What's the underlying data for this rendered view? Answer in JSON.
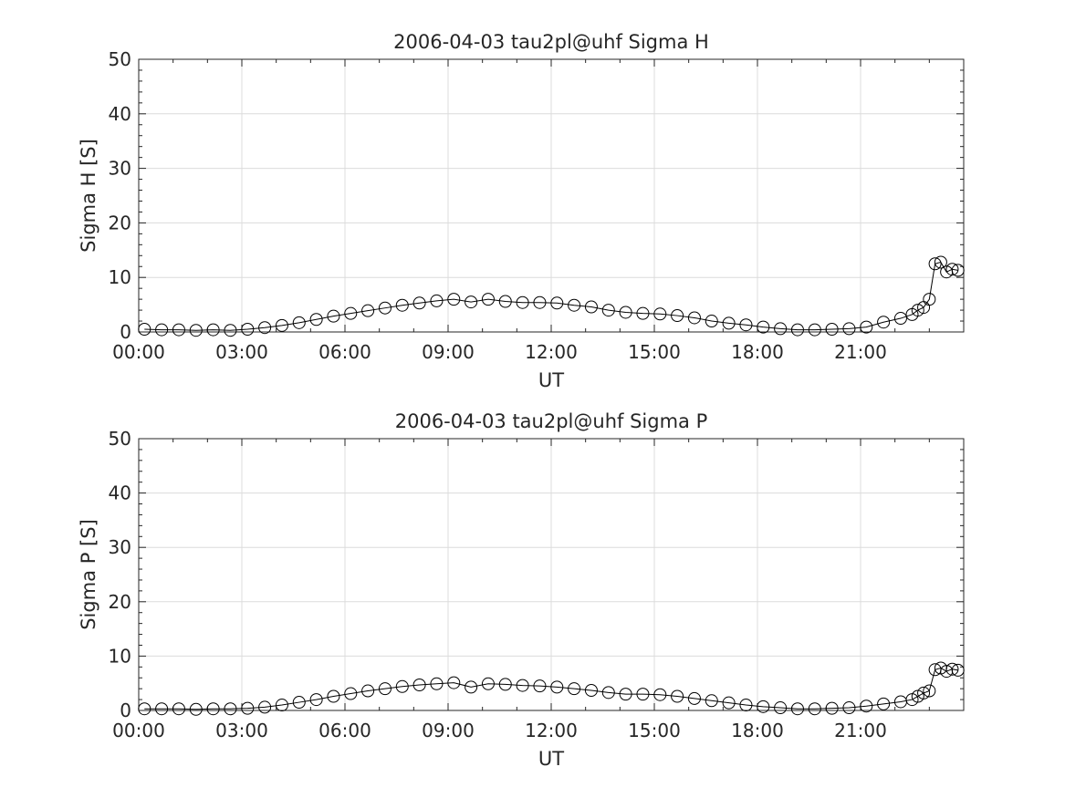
{
  "chart_data": [
    {
      "type": "line",
      "title": "2006-04-03  tau2pl@uhf Sigma H",
      "xlabel": "UT",
      "ylabel": "Sigma H [S]",
      "xlim": [
        "00:00",
        "24:00"
      ],
      "ylim": [
        0,
        50
      ],
      "xticks": [
        "00:00",
        "03:00",
        "06:00",
        "09:00",
        "12:00",
        "15:00",
        "18:00",
        "21:00"
      ],
      "yticks": [
        0,
        10,
        20,
        30,
        40,
        50
      ],
      "grid": true,
      "marker": "open-circle",
      "color": "#000000",
      "series": [
        {
          "x": [
            "00:10",
            "00:40",
            "01:10",
            "01:40",
            "02:10",
            "02:40",
            "03:10",
            "03:40",
            "04:10",
            "04:40",
            "05:10",
            "05:40",
            "06:10",
            "06:40",
            "07:10",
            "07:40",
            "08:10",
            "08:40",
            "09:10",
            "09:40",
            "10:10",
            "10:40",
            "11:10",
            "11:40",
            "12:10",
            "12:40",
            "13:10",
            "13:40",
            "14:10",
            "14:40",
            "15:10",
            "15:40",
            "16:10",
            "16:40",
            "17:10",
            "17:40",
            "18:10",
            "18:40",
            "19:10",
            "19:40",
            "20:10",
            "20:40",
            "21:10",
            "21:40",
            "22:10",
            "22:30",
            "22:40",
            "22:50",
            "23:00",
            "23:10",
            "23:20",
            "23:30",
            "23:40",
            "23:50"
          ],
          "y": [
            0.5,
            0.4,
            0.4,
            0.3,
            0.4,
            0.3,
            0.5,
            0.8,
            1.2,
            1.7,
            2.3,
            2.9,
            3.4,
            3.9,
            4.4,
            4.9,
            5.3,
            5.7,
            6.0,
            5.5,
            6.0,
            5.6,
            5.4,
            5.4,
            5.3,
            4.9,
            4.6,
            4.0,
            3.6,
            3.4,
            3.3,
            3.0,
            2.6,
            2.0,
            1.6,
            1.3,
            0.9,
            0.6,
            0.4,
            0.4,
            0.5,
            0.6,
            0.9,
            1.8,
            2.5,
            3.2,
            4.0,
            4.5,
            6.0,
            12.5,
            12.8,
            11.0,
            11.5,
            11.3
          ]
        }
      ]
    },
    {
      "type": "line",
      "title": "2006-04-03  tau2pl@uhf Sigma P",
      "xlabel": "UT",
      "ylabel": "Sigma P [S]",
      "xlim": [
        "00:00",
        "24:00"
      ],
      "ylim": [
        0,
        50
      ],
      "xticks": [
        "00:00",
        "03:00",
        "06:00",
        "09:00",
        "12:00",
        "15:00",
        "18:00",
        "21:00"
      ],
      "yticks": [
        0,
        10,
        20,
        30,
        40,
        50
      ],
      "grid": true,
      "marker": "open-circle",
      "color": "#000000",
      "series": [
        {
          "x": [
            "00:10",
            "00:40",
            "01:10",
            "01:40",
            "02:10",
            "02:40",
            "03:10",
            "03:40",
            "04:10",
            "04:40",
            "05:10",
            "05:40",
            "06:10",
            "06:40",
            "07:10",
            "07:40",
            "08:10",
            "08:40",
            "09:10",
            "09:40",
            "10:10",
            "10:40",
            "11:10",
            "11:40",
            "12:10",
            "12:40",
            "13:10",
            "13:40",
            "14:10",
            "14:40",
            "15:10",
            "15:40",
            "16:10",
            "16:40",
            "17:10",
            "17:40",
            "18:10",
            "18:40",
            "19:10",
            "19:40",
            "20:10",
            "20:40",
            "21:10",
            "21:40",
            "22:10",
            "22:30",
            "22:40",
            "22:50",
            "23:00",
            "23:10",
            "23:20",
            "23:30",
            "23:40",
            "23:50"
          ],
          "y": [
            0.3,
            0.3,
            0.3,
            0.2,
            0.3,
            0.3,
            0.4,
            0.6,
            1.0,
            1.5,
            2.0,
            2.6,
            3.1,
            3.6,
            4.0,
            4.4,
            4.7,
            4.9,
            5.1,
            4.3,
            4.9,
            4.8,
            4.6,
            4.5,
            4.3,
            4.0,
            3.7,
            3.3,
            3.0,
            3.0,
            2.9,
            2.6,
            2.2,
            1.8,
            1.4,
            1.0,
            0.7,
            0.5,
            0.3,
            0.3,
            0.4,
            0.5,
            0.8,
            1.2,
            1.6,
            2.0,
            2.6,
            3.2,
            3.6,
            7.5,
            7.8,
            7.2,
            7.6,
            7.4
          ]
        }
      ]
    }
  ]
}
